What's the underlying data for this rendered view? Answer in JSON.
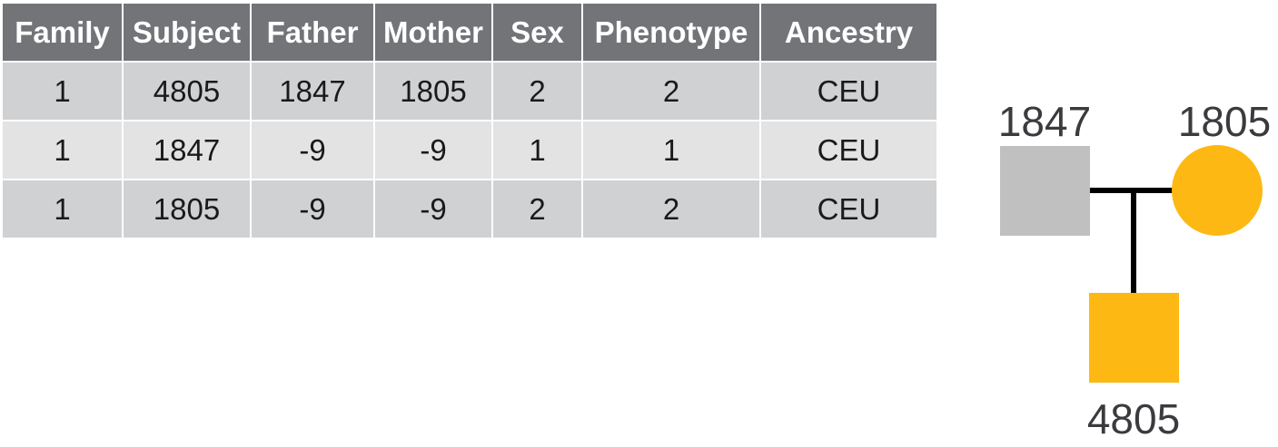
{
  "table": {
    "columns": [
      "Family",
      "Subject",
      "Father",
      "Mother",
      "Sex",
      "Phenotype",
      "Ancestry"
    ],
    "rows": [
      [
        "1",
        "4805",
        "1847",
        "1805",
        "2",
        "2",
        "CEU"
      ],
      [
        "1",
        "1847",
        "-9",
        "-9",
        "1",
        "1",
        "CEU"
      ],
      [
        "1",
        "1805",
        "-9",
        "-9",
        "2",
        "2",
        "CEU"
      ]
    ]
  },
  "pedigree": {
    "father": {
      "id": "1847",
      "sex": "male",
      "phenotype": "unaffected",
      "color": "#c0c0c0"
    },
    "mother": {
      "id": "1805",
      "sex": "female",
      "phenotype": "affected",
      "color": "#fdb813"
    },
    "child": {
      "id": "4805",
      "sex": "female-coded",
      "phenotype": "affected",
      "color": "#fdb813"
    },
    "line_color": "#000000"
  }
}
